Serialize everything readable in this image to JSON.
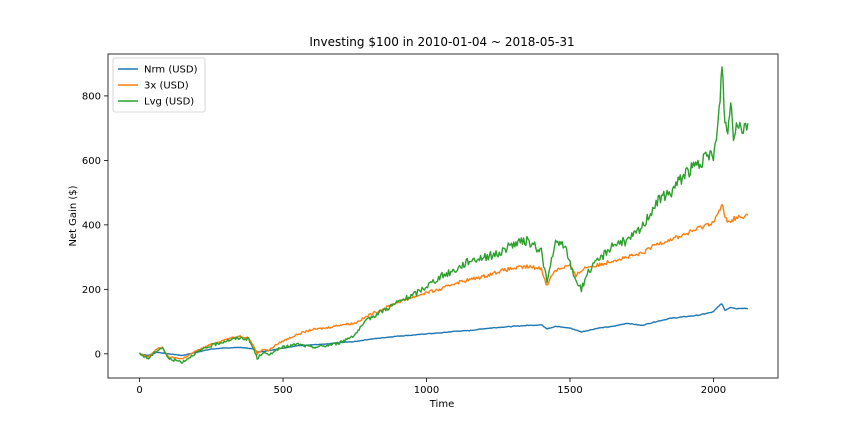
{
  "chart_data": {
    "type": "line",
    "title": "Investing $100 in 2010-01-04 ~ 2018-05-31",
    "xlabel": "Time",
    "ylabel": "Net Gain ($)",
    "xlim": [
      -110,
      2225
    ],
    "ylim": [
      -75,
      930
    ],
    "xticks": [
      0,
      500,
      1000,
      1500,
      2000
    ],
    "yticks": [
      0,
      200,
      400,
      600,
      800
    ],
    "legend_position": "upper-left",
    "grid": false,
    "series": [
      {
        "name": "Nrm (USD)",
        "color": "#1f77b4",
        "x": [
          0,
          30,
          60,
          100,
          150,
          200,
          250,
          300,
          350,
          400,
          410,
          450,
          500,
          550,
          600,
          650,
          700,
          750,
          800,
          850,
          900,
          950,
          1000,
          1050,
          1100,
          1150,
          1200,
          1250,
          1300,
          1350,
          1400,
          1420,
          1450,
          1500,
          1540,
          1560,
          1600,
          1650,
          1700,
          1750,
          1800,
          1850,
          1900,
          1950,
          2000,
          2020,
          2030,
          2040,
          2060,
          2080,
          2100,
          2120
        ],
        "y": [
          0,
          -5,
          5,
          0,
          -5,
          5,
          15,
          18,
          20,
          15,
          5,
          10,
          18,
          25,
          28,
          30,
          35,
          38,
          45,
          50,
          55,
          58,
          62,
          65,
          70,
          72,
          78,
          82,
          85,
          88,
          90,
          78,
          85,
          80,
          68,
          72,
          80,
          85,
          95,
          88,
          100,
          110,
          115,
          120,
          130,
          150,
          155,
          135,
          145,
          140,
          142,
          140
        ]
      },
      {
        "name": "3x (USD)",
        "color": "#ff7f0e",
        "x": [
          0,
          30,
          60,
          80,
          100,
          150,
          200,
          250,
          300,
          350,
          380,
          400,
          410,
          430,
          450,
          470,
          500,
          550,
          600,
          650,
          700,
          750,
          800,
          850,
          900,
          950,
          1000,
          1050,
          1100,
          1150,
          1200,
          1250,
          1300,
          1350,
          1400,
          1420,
          1440,
          1450,
          1480,
          1500,
          1520,
          1540,
          1560,
          1600,
          1650,
          1700,
          1750,
          1800,
          1850,
          1900,
          1950,
          2000,
          2020,
          2030,
          2040,
          2060,
          2080,
          2100,
          2120
        ],
        "y": [
          0,
          -10,
          15,
          20,
          -10,
          -15,
          10,
          30,
          45,
          55,
          50,
          20,
          0,
          15,
          10,
          25,
          40,
          60,
          75,
          80,
          90,
          95,
          120,
          140,
          160,
          175,
          190,
          200,
          220,
          230,
          240,
          255,
          265,
          270,
          265,
          210,
          250,
          260,
          270,
          275,
          240,
          260,
          270,
          275,
          290,
          300,
          310,
          340,
          355,
          370,
          390,
          410,
          440,
          465,
          420,
          410,
          425,
          420,
          430
        ]
      },
      {
        "name": "Lvg (USD)",
        "color": "#2ca02c",
        "x": [
          0,
          30,
          60,
          80,
          100,
          150,
          200,
          250,
          300,
          350,
          380,
          400,
          410,
          430,
          450,
          470,
          500,
          550,
          600,
          650,
          700,
          750,
          800,
          850,
          900,
          950,
          1000,
          1050,
          1100,
          1150,
          1200,
          1250,
          1300,
          1350,
          1400,
          1420,
          1440,
          1450,
          1480,
          1500,
          1520,
          1540,
          1560,
          1600,
          1650,
          1700,
          1750,
          1800,
          1850,
          1900,
          1950,
          2000,
          2010,
          2020,
          2030,
          2040,
          2050,
          2060,
          2070,
          2080,
          2100,
          2120
        ],
        "y": [
          0,
          -15,
          10,
          20,
          -15,
          -25,
          5,
          25,
          40,
          50,
          45,
          10,
          -15,
          5,
          -5,
          10,
          20,
          30,
          20,
          25,
          35,
          60,
          110,
          135,
          160,
          180,
          210,
          240,
          260,
          290,
          300,
          310,
          340,
          350,
          320,
          220,
          310,
          340,
          340,
          280,
          230,
          200,
          250,
          290,
          340,
          350,
          390,
          470,
          500,
          560,
          590,
          620,
          660,
          750,
          900,
          720,
          680,
          800,
          660,
          730,
          700,
          715
        ]
      }
    ]
  }
}
